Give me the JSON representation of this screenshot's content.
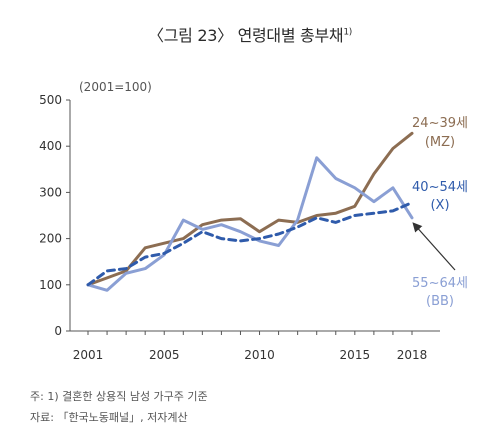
{
  "title": "〈그림 23〉 연령대별 총부채",
  "title_sup": "1)",
  "unit_note": "(2001=100)",
  "footnote": "주: 1) 결혼한 상용직 남성 가구주 기준",
  "source": "자료: 「한국노동패널」, 저자계산",
  "colors": {
    "mz": "#8c6d52",
    "x": "#2f5bab",
    "bb": "#8a9fd4",
    "axis": "#555555"
  },
  "chart_data": {
    "type": "line",
    "x": [
      2001,
      2002,
      2003,
      2004,
      2005,
      2006,
      2007,
      2008,
      2009,
      2010,
      2011,
      2012,
      2013,
      2014,
      2015,
      2016,
      2017,
      2018
    ],
    "x_ticks": [
      "2001",
      "2005",
      "2010",
      "2015",
      "2018"
    ],
    "y_ticks": [
      "0",
      "100",
      "200",
      "300",
      "400",
      "500"
    ],
    "ylim": [
      0,
      500
    ],
    "series": [
      {
        "name": "24~39세",
        "sub": "(MZ)",
        "style": "solid",
        "values": [
          100,
          115,
          130,
          180,
          190,
          200,
          230,
          240,
          243,
          215,
          240,
          235,
          250,
          255,
          270,
          340,
          395,
          428
        ]
      },
      {
        "name": "40~54세",
        "sub": "(X)",
        "style": "dashed",
        "values": [
          100,
          130,
          135,
          160,
          168,
          190,
          215,
          200,
          195,
          200,
          210,
          225,
          245,
          235,
          250,
          255,
          260,
          278
        ]
      },
      {
        "name": "55~64세",
        "sub": "(BB)",
        "style": "solid",
        "values": [
          100,
          88,
          125,
          135,
          165,
          240,
          220,
          230,
          215,
          195,
          185,
          240,
          375,
          330,
          310,
          280,
          310,
          245
        ]
      }
    ]
  }
}
